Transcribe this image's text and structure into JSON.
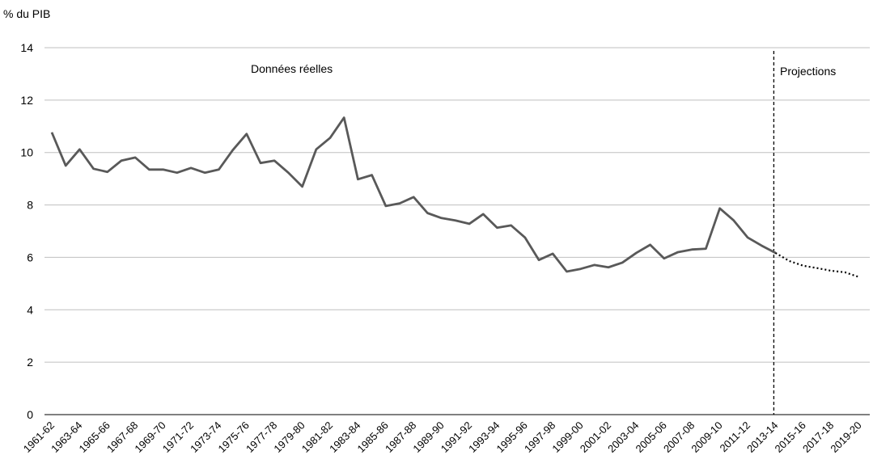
{
  "chart_data": {
    "type": "line",
    "y_label": "% du PIB",
    "annotations": [
      "Données réelles",
      "Projections"
    ],
    "projection_start": "2013-14",
    "categories": [
      "1961-62",
      null,
      "1963-64",
      null,
      "1965-66",
      null,
      "1967-68",
      null,
      "1969-70",
      null,
      "1971-72",
      null,
      "1973-74",
      null,
      "1975-76",
      null,
      "1977-78",
      null,
      "1979-80",
      null,
      "1981-82",
      null,
      "1983-84",
      null,
      "1985-86",
      null,
      "1987-88",
      null,
      "1989-90",
      null,
      "1991-92",
      null,
      "1993-94",
      null,
      "1995-96",
      null,
      "1997-98",
      null,
      "1999-00",
      null,
      "2001-02",
      null,
      "2003-04",
      null,
      "2005-06",
      null,
      "2007-08",
      null,
      "2009-10",
      null,
      "2011-12",
      null,
      "2013-14",
      null,
      "2015-16",
      null,
      "2017-18",
      null,
      "2019-20"
    ],
    "series": [
      {
        "color": "#595959",
        "style": "solid",
        "values": [
          10.77,
          9.5,
          10.12,
          9.38,
          9.26,
          9.69,
          9.81,
          9.35,
          9.35,
          9.23,
          9.41,
          9.23,
          9.35,
          10.09,
          10.71,
          9.6,
          9.69,
          9.23,
          8.7,
          10.12,
          10.56,
          11.33,
          8.98,
          9.14,
          7.96,
          8.06,
          8.3,
          7.69,
          7.5,
          7.41,
          7.28,
          7.65,
          7.13,
          7.22,
          6.76,
          5.9,
          6.14,
          5.46,
          5.56,
          5.71,
          5.62,
          5.8,
          6.17,
          6.48,
          5.96,
          6.2,
          6.3,
          6.33,
          7.87,
          7.41,
          6.76,
          6.45,
          6.17,
          null,
          null,
          null,
          null,
          null,
          null
        ]
      },
      {
        "color": "#000000",
        "style": "dotted",
        "values": [
          null,
          null,
          null,
          null,
          null,
          null,
          null,
          null,
          null,
          null,
          null,
          null,
          null,
          null,
          null,
          null,
          null,
          null,
          null,
          null,
          null,
          null,
          null,
          null,
          null,
          null,
          null,
          null,
          null,
          null,
          null,
          null,
          null,
          null,
          null,
          null,
          null,
          null,
          null,
          null,
          null,
          null,
          null,
          null,
          null,
          null,
          null,
          null,
          null,
          null,
          null,
          null,
          6.17,
          5.86,
          5.68,
          5.59,
          5.49,
          5.43,
          5.25
        ]
      }
    ],
    "ylim": [
      0,
      14
    ],
    "yticks": [
      0,
      2,
      4,
      6,
      8,
      10,
      12,
      14
    ],
    "grid": true
  }
}
